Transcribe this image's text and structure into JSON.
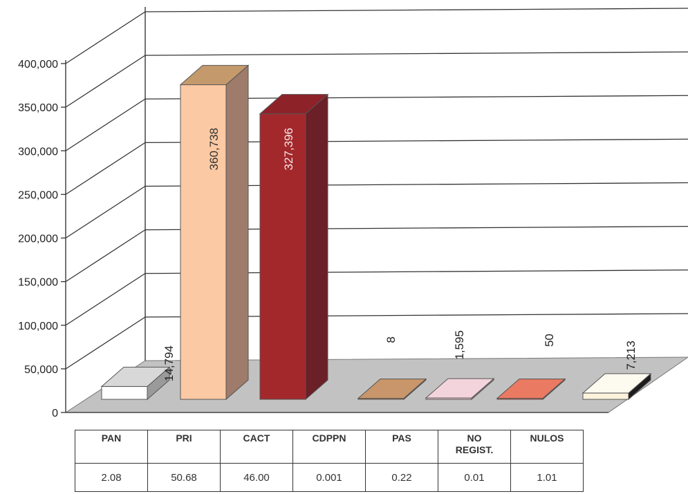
{
  "chart_data": {
    "type": "bar",
    "categories": [
      "PAN",
      "PRI",
      "CACT",
      "CDPPN",
      "PAS",
      "NO REGIST.",
      "NULOS"
    ],
    "values": [
      14794,
      360738,
      327396,
      8,
      1595,
      50,
      7213
    ],
    "value_labels": [
      "14,794",
      "360,738",
      "327,396",
      "8",
      "1,595",
      "50",
      "7,213"
    ],
    "percentages": [
      "2.08",
      "50.68",
      "46.00",
      "0.001",
      "0.22",
      "0.01",
      "1.01"
    ],
    "y_ticks": [
      "0",
      "50,000",
      "100,000",
      "150,000",
      "200,000",
      "250,000",
      "300,000",
      "350,000",
      "400,000"
    ],
    "ylim": [
      0,
      400000
    ],
    "grid": true,
    "colors": [
      "#ffffff",
      "#fbc9a3",
      "#a3282c",
      "#b97e55",
      "#f1c3cf",
      "#e05a45",
      "#fbf3dc"
    ],
    "side_colors": [
      "#9a9a9a",
      "#9e7b6a",
      "#6b1f27",
      "#7a5030",
      "#9a8088",
      "#8a3525",
      "#1d1d1d"
    ],
    "top_colors": [
      "#d8d8d8",
      "#c49a6c",
      "#8e2229",
      "#c8966a",
      "#f4d4dc",
      "#ea7a62",
      "#fdfaf0"
    ],
    "title": "",
    "xlabel": "",
    "ylabel": ""
  }
}
